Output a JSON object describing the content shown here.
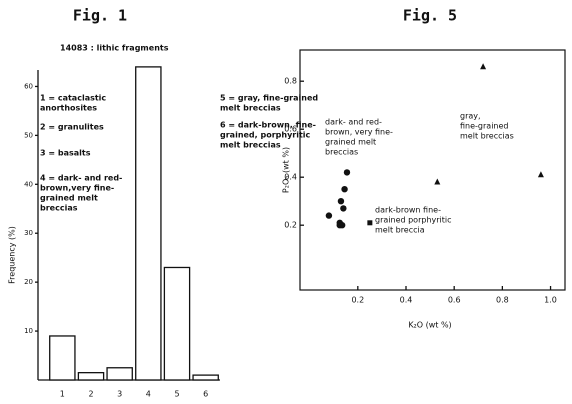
{
  "chart_data": [
    {
      "type": "bar",
      "title": "Fig. 1",
      "y_label": "Frequency (%)",
      "subtitle": "14083 : lithic fragments",
      "categories": [
        "1",
        "2",
        "3",
        "4",
        "5",
        "6"
      ],
      "values": [
        9,
        1.5,
        2.5,
        64,
        23,
        1
      ],
      "color": "#ffffff",
      "ylim": [
        0,
        65
      ],
      "yticks": [
        10,
        20,
        30,
        40,
        50,
        60
      ],
      "annotations": [
        {
          "lines": [
            "1 = cataclastic",
            "anorthosites"
          ]
        },
        {
          "lines": [
            "2 = granulites"
          ]
        },
        {
          "lines": [
            "3 = basalts"
          ]
        },
        {
          "lines": [
            "4 = dark- and red-",
            "brown,very fine-",
            "grained melt",
            "breccias"
          ]
        },
        {
          "lines": [
            "5 = gray, fine-grained",
            "melt breccias"
          ]
        },
        {
          "lines": [
            "6 = dark-brown, fine-",
            "grained, porphyritic",
            "melt breccias"
          ]
        }
      ]
    },
    {
      "type": "scatter",
      "title": "Fig. 5",
      "x_label": "K₂O (wt %)",
      "y_label": "P₂O₅ (wt %)",
      "series": [
        {
          "marker": "circle",
          "x": [
            0.08,
            0.125,
            0.13,
            0.145,
            0.155,
            0.14,
            0.125,
            0.135
          ],
          "values": [
            0.24,
            0.21,
            0.3,
            0.35,
            0.42,
            0.27,
            0.2,
            0.2
          ]
        },
        {
          "marker": "triangle",
          "x": [
            0.72,
            0.53,
            0.96
          ],
          "values": [
            0.86,
            0.38,
            0.41
          ]
        },
        {
          "marker": "square",
          "x": [
            0.25
          ],
          "values": [
            0.21
          ]
        }
      ],
      "xlim": [
        -0.04,
        1.06
      ],
      "ylim": [
        -0.07,
        0.93
      ],
      "xticks": [
        0.2,
        0.4,
        0.6,
        0.8,
        {
          "value": 1,
          "label": "1.0"
        }
      ],
      "yticks": [
        0.2,
        0.4,
        0.6,
        0.8
      ],
      "annotations": [
        {
          "lines": [
            "dark- and red-",
            "brown, very fine-",
            "grained melt",
            "breccias"
          ]
        },
        {
          "lines": [
            "gray,",
            "fine-grained",
            "melt breccias"
          ]
        },
        {
          "lines": [
            "dark-brown fine-",
            "grained porphyritic",
            "melt breccia"
          ]
        }
      ]
    }
  ]
}
